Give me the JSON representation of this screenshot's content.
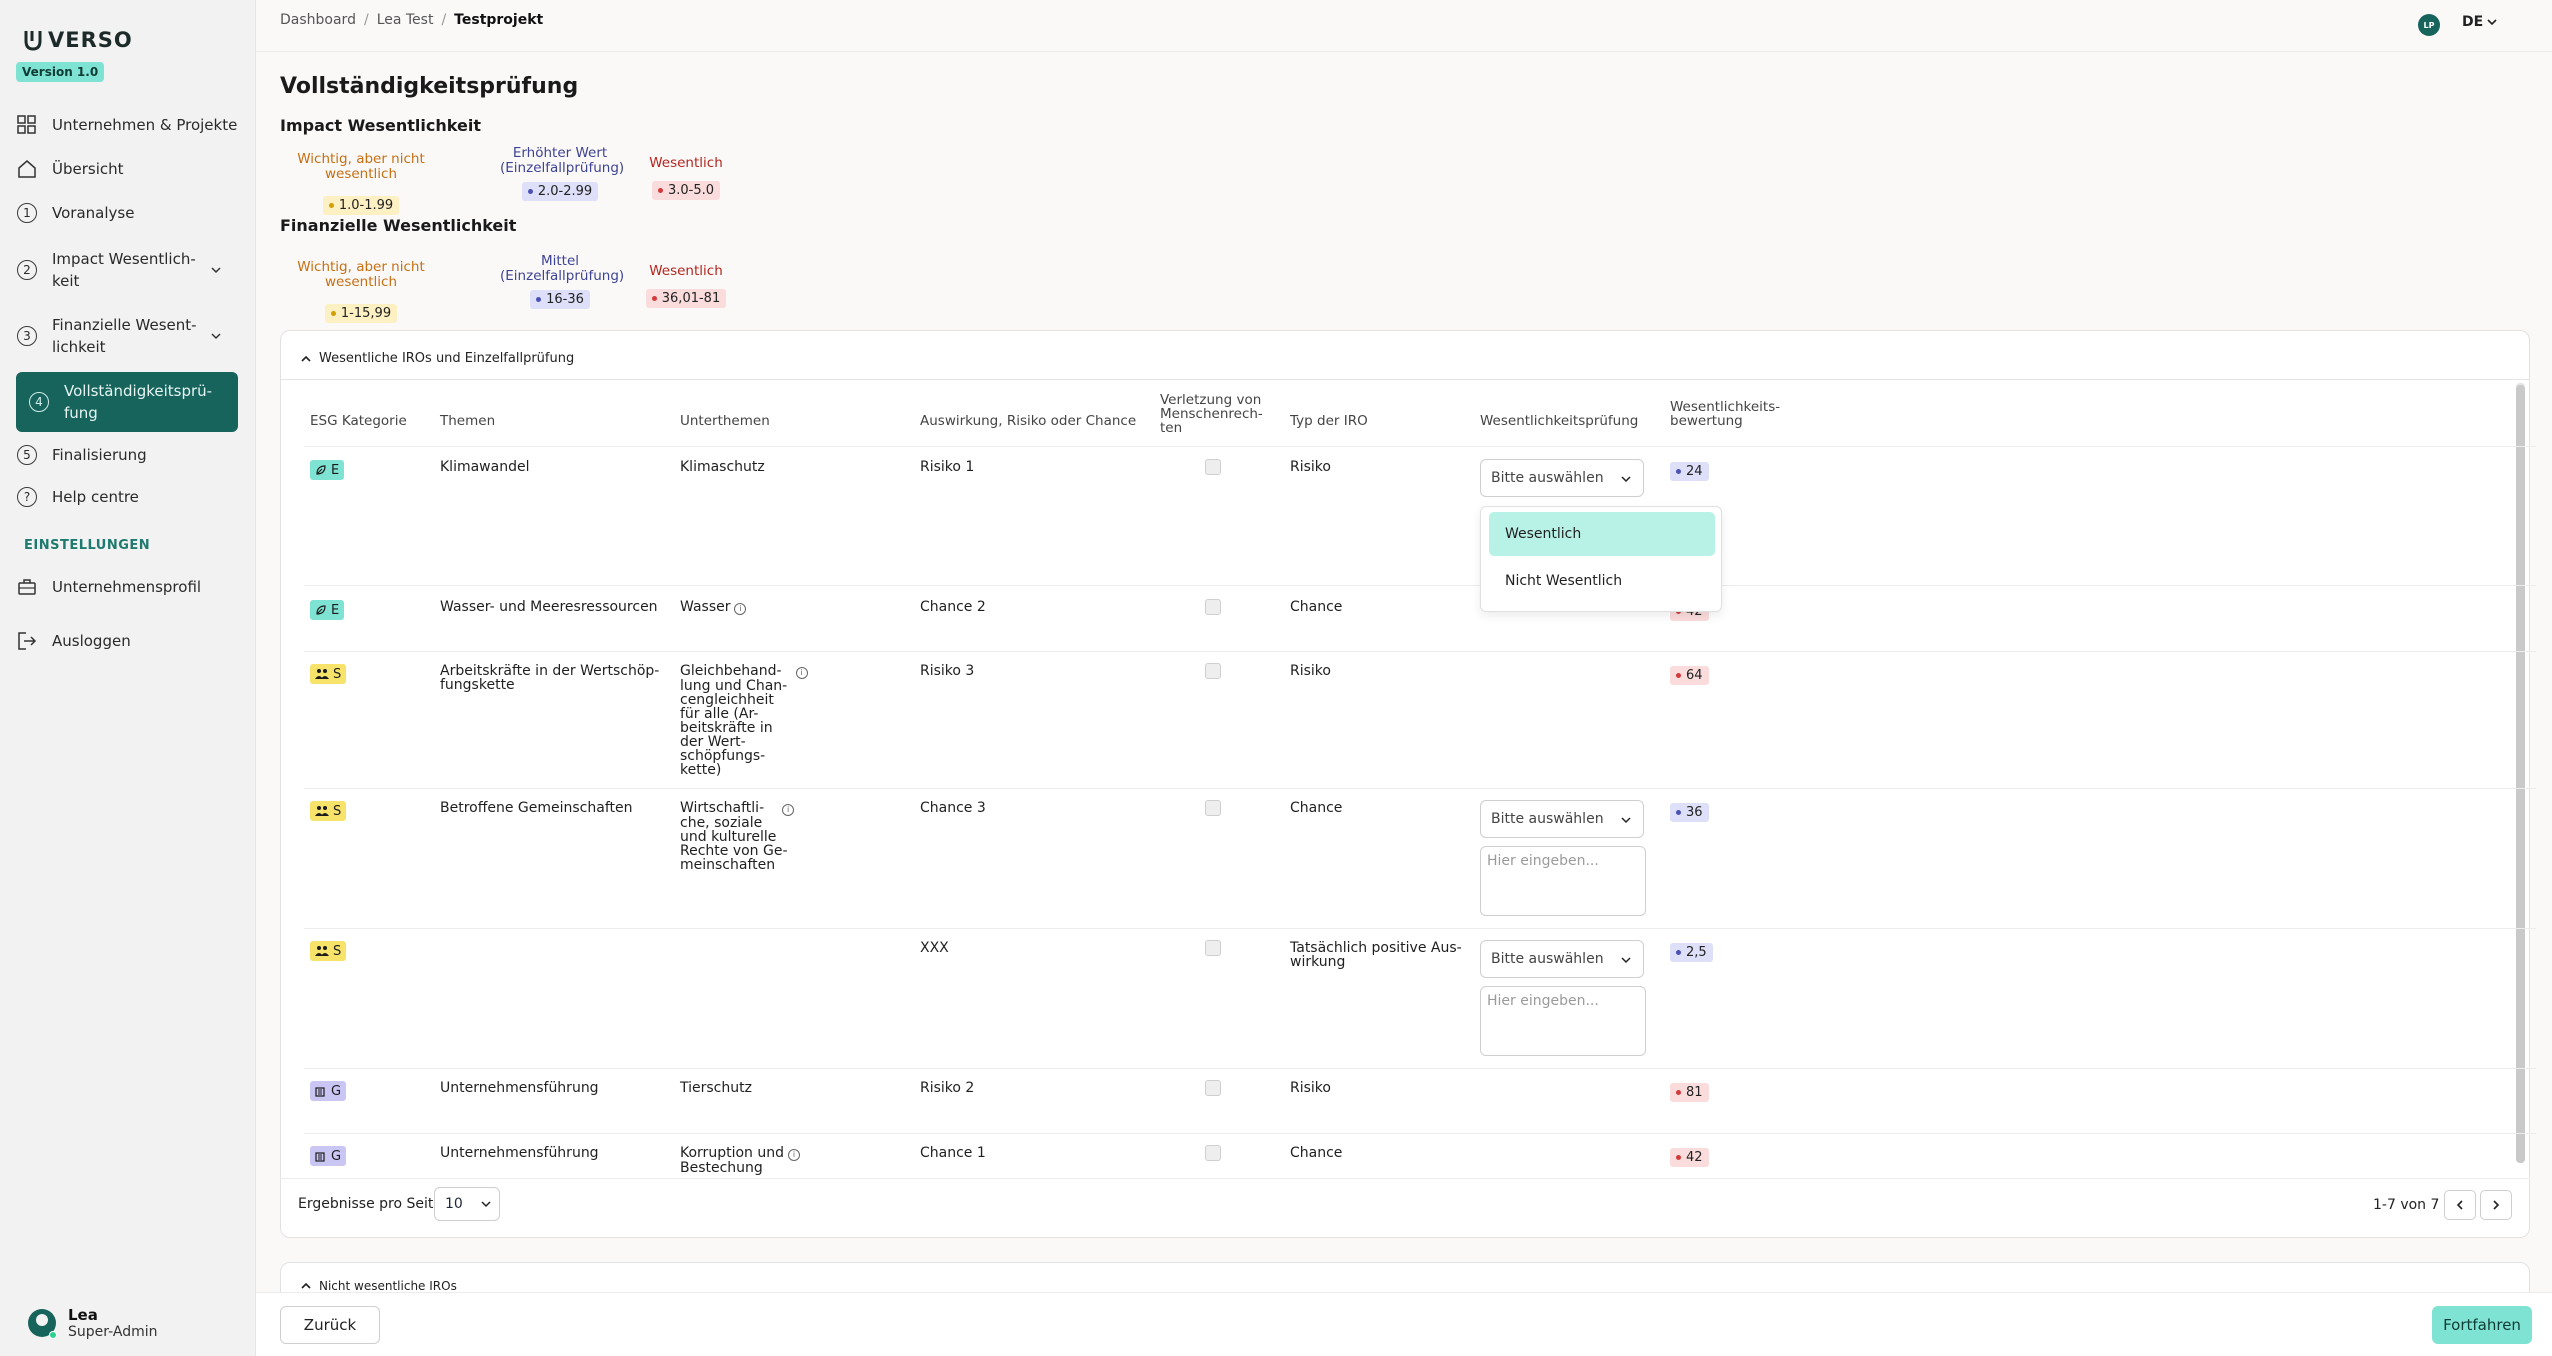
{
  "app": {
    "logo_text": "VERSO",
    "version": "Version 1.0"
  },
  "sidebar": {
    "items": [
      {
        "label": "Unternehmen & Projekte",
        "icon": "grid-icon"
      },
      {
        "label": "Übersicht",
        "icon": "home-icon"
      },
      {
        "number": "1",
        "label": "Voranalyse"
      },
      {
        "number": "2",
        "label": "Impact Wesentlich-keit",
        "line1": "Impact Wesentlich-",
        "line2": "keit"
      },
      {
        "number": "3",
        "label": "Finanzielle Wesent-lichkeit",
        "line1": "Finanzielle Wesent-",
        "line2": "lichkeit"
      },
      {
        "number": "4",
        "label": "Vollständigkeitsprü-fung",
        "line1": "Vollständigkeitsprü-",
        "line2": "fung"
      },
      {
        "number": "5",
        "label": "Finalisierung"
      },
      {
        "label": "Help centre",
        "icon": "question-icon"
      }
    ],
    "section_label": "EINSTELLUNGEN",
    "settings_items": [
      {
        "label": "Unternehmensprofil",
        "icon": "briefcase-icon"
      },
      {
        "label": "Ausloggen",
        "icon": "logout-icon"
      }
    ],
    "user": {
      "name": "Lea",
      "role": "Super-Admin"
    }
  },
  "topbar": {
    "breadcrumb": [
      "Dashboard",
      "Lea Test",
      "Testprojekt"
    ],
    "avatar_initials": "LP",
    "language": "DE"
  },
  "page": {
    "title": "Vollständigkeitsprüfung",
    "impact": {
      "title": "Impact Wesentlichkeit",
      "legend": [
        {
          "label": "Wichtig, aber nicht wesentlich",
          "range": "1.0-1.99",
          "color": "yellow"
        },
        {
          "label_line1": "Erhöhter Wert",
          "label_line2": "(Einzelfallprüfung)",
          "range": "2.0-2.99",
          "color": "blue"
        },
        {
          "label": "Wesentlich",
          "range": "3.0-5.0",
          "color": "red"
        }
      ]
    },
    "financial": {
      "title": "Finanzielle Wesentlichkeit",
      "legend": [
        {
          "label": "Wichtig, aber nicht wesentlich",
          "range": "1-15,99",
          "color": "yellow"
        },
        {
          "label_line1": "Mittel",
          "label_line2": "(Einzelfallprüfung)",
          "range": "16-36",
          "color": "blue"
        },
        {
          "label": "Wesentlich",
          "range": "36,01-81",
          "color": "red"
        }
      ]
    }
  },
  "panel": {
    "title": "Wesentliche IROs und Einzelfallprüfung",
    "columns": {
      "esg": "ESG Kategorie",
      "themen": "Themen",
      "unterthemen": "Unterthemen",
      "auswirkung": "Auswirkung, Risiko oder Chance",
      "verletzung_1": "Verletzung von",
      "verletzung_2": "Menschenrech-",
      "verletzung_3": "ten",
      "typ": "Typ der IRO",
      "pruefung": "Wesentlichkeitsprüfung",
      "bewertung_1": "Wesentlichkeits-",
      "bewertung_2": "bewertung"
    },
    "rows": [
      {
        "cat": "E",
        "themen": "Klimawandel",
        "unterthemen": "Klimaschutz",
        "auswirkung": "Risiko 1",
        "typ": "Risiko",
        "score": "24"
      },
      {
        "cat": "E",
        "themen": "Wasser- und Meeresressourcen",
        "unterthemen": "Wasser",
        "auswirkung": "Chance 2",
        "typ": "Chance",
        "score": "42"
      },
      {
        "cat": "S",
        "themen_1": "Arbeitskräfte in der Wertschöp-",
        "themen_2": "fungskette",
        "unt_1": "Gleichbehand-",
        "unt_2": "lung und Chan-",
        "unt_3": "cengleichheit",
        "unt_4": "für alle (Ar-",
        "unt_5": "beitskräfte in",
        "unt_6": "der Wert-",
        "unt_7": "schöpfungs-",
        "unt_8": "kette)",
        "auswirkung": "Risiko 3",
        "typ": "Risiko",
        "score": "64"
      },
      {
        "cat": "S",
        "themen": "Betroffene Gemeinschaften",
        "unt_1": "Wirtschaftli-",
        "unt_2": "che, soziale",
        "unt_3": "und kulturelle",
        "unt_4": "Rechte von Ge-",
        "unt_5": "meinschaften",
        "auswirkung": "Chance 3",
        "typ": "Chance",
        "score": "36"
      },
      {
        "cat": "S",
        "themen": "",
        "unterthemen": "",
        "auswirkung": "XXX",
        "typ_1": "Tatsächlich positive Aus-",
        "typ_2": "wirkung",
        "score": "2,5"
      },
      {
        "cat": "G",
        "themen": "Unternehmensführung",
        "unterthemen": "Tierschutz",
        "auswirkung": "Risiko 2",
        "typ": "Risiko",
        "score": "81"
      },
      {
        "cat": "G",
        "themen": "Unternehmensführung",
        "unt_1": "Korruption und",
        "unt_2": "Bestechung",
        "auswirkung": "Chance 1",
        "typ": "Chance",
        "score": "42"
      }
    ],
    "select_placeholder": "Bitte auswählen",
    "textarea_placeholder": "Hier eingeben...",
    "dropdown_options": [
      "Wesentlich",
      "Nicht Wesentlich"
    ],
    "per_page_label": "Ergebnisse pro Seite",
    "per_page_value": "10",
    "pager_text": "1-7 von 7"
  },
  "panel2": {
    "title": "Nicht wesentliche IROs"
  },
  "footer": {
    "back": "Zurück",
    "next": "Fortfahren"
  },
  "colors": {
    "brand": "#17645c",
    "accent": "#7fe3d3"
  }
}
